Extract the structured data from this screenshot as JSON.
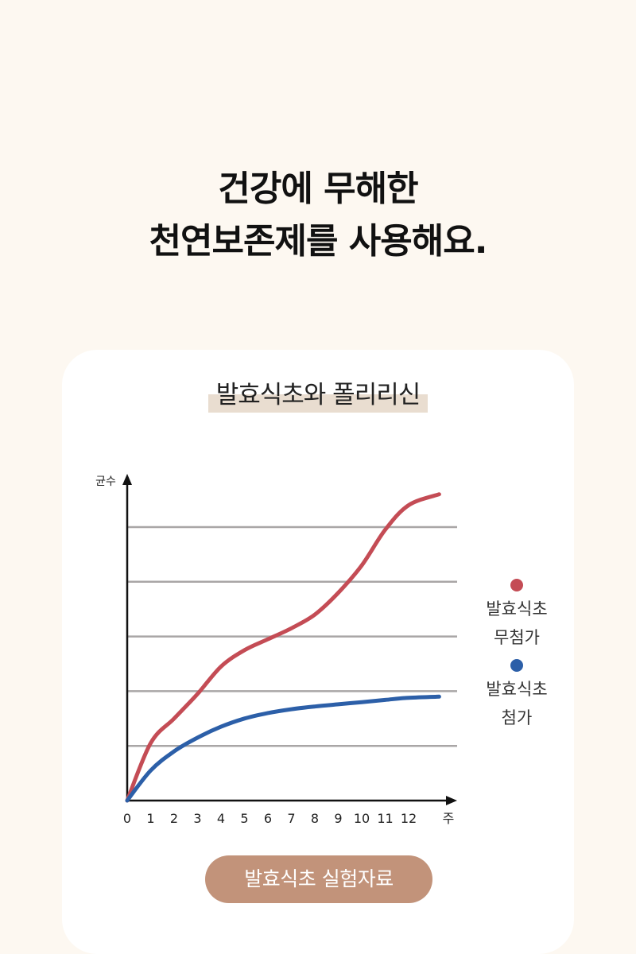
{
  "headline": {
    "line1": "건강에 무해한",
    "line2": "천연보존제를 사용해요."
  },
  "button_label": "발효식초 실험자료",
  "chart_data": {
    "type": "line",
    "title": "발효식초와 폴리리신",
    "ylabel": "균수",
    "xlabel": "주",
    "x": [
      0,
      1,
      2,
      3,
      4,
      5,
      6,
      7,
      8,
      9,
      10,
      11,
      12
    ],
    "xlim": [
      0,
      13.3
    ],
    "ylim": [
      0,
      6
    ],
    "grid": true,
    "gridlines_y": [
      1,
      2,
      3,
      4,
      5
    ],
    "legend_position": "right",
    "series": [
      {
        "name": "발효식초 무첨가",
        "color": "#c44c55",
        "values": [
          0,
          1.05,
          1.5,
          1.95,
          2.45,
          2.75,
          2.95,
          3.15,
          3.4,
          3.8,
          4.3,
          4.95,
          5.4
        ],
        "end_value": 5.6
      },
      {
        "name": "발효식초 첨가",
        "color": "#2c5fa8",
        "values": [
          0,
          0.55,
          0.9,
          1.15,
          1.35,
          1.5,
          1.6,
          1.67,
          1.72,
          1.76,
          1.8,
          1.84,
          1.88
        ],
        "end_value": 1.9
      }
    ]
  },
  "legend": [
    {
      "line1": "발효식초",
      "line2": "무첨가",
      "color": "#c44c55"
    },
    {
      "line1": "발효식초",
      "line2": "첨가",
      "color": "#2c5fa8"
    }
  ]
}
